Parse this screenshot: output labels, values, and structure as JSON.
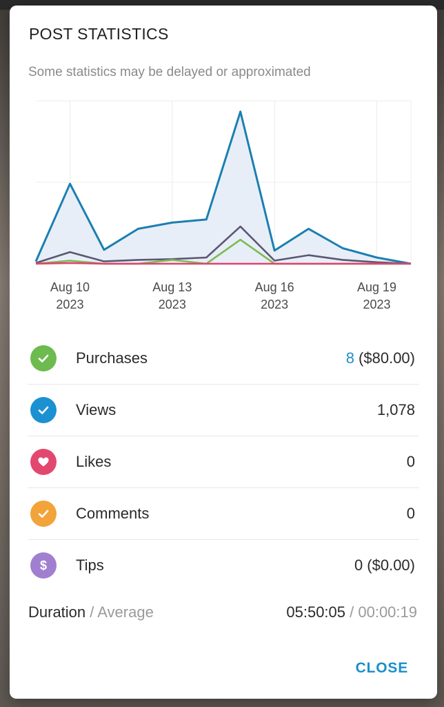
{
  "dialog": {
    "title": "POST STATISTICS",
    "subtitle": "Some statistics may be delayed or approximated",
    "close_label": "CLOSE"
  },
  "chart_data": {
    "type": "area",
    "x_tick_labels": [
      {
        "line1": "Aug 10",
        "line2": "2023"
      },
      {
        "line1": "Aug 13",
        "line2": "2023"
      },
      {
        "line1": "Aug 16",
        "line2": "2023"
      },
      {
        "line1": "Aug 19",
        "line2": "2023"
      }
    ],
    "x_tick_positions": [
      1,
      4,
      7,
      10
    ],
    "x": [
      0,
      1,
      2,
      3,
      4,
      5,
      6,
      7,
      8,
      9,
      10,
      11
    ],
    "ylim": [
      0,
      210
    ],
    "grid": true,
    "series": [
      {
        "id": "views",
        "color": "#1b7fb0",
        "fill": "#e8eef7",
        "values": [
          3,
          103,
          18,
          45,
          53,
          57,
          196,
          17,
          45,
          20,
          8,
          0
        ]
      },
      {
        "id": "purchases",
        "color": "#5c5672",
        "values": [
          1,
          15,
          3,
          5,
          6,
          8,
          48,
          4,
          11,
          5,
          2,
          0
        ]
      },
      {
        "id": "likes",
        "color": "#7cbc52",
        "values": [
          0,
          4,
          0,
          0,
          5,
          0,
          31,
          0,
          0,
          0,
          0,
          0
        ]
      },
      {
        "id": "tips",
        "color": "#e0436f",
        "values": [
          0,
          1,
          0,
          0,
          0,
          0,
          0,
          0,
          0,
          0,
          0,
          0
        ]
      }
    ]
  },
  "stats": [
    {
      "key": "purchases",
      "label": "Purchases",
      "icon": "check-icon",
      "icon_color": "#6dbb4f",
      "value_count": "8",
      "value_rest": " ($80.00)"
    },
    {
      "key": "views",
      "label": "Views",
      "icon": "check-icon",
      "icon_color": "#1b91d1",
      "value_count": "",
      "value_rest": "1,078"
    },
    {
      "key": "likes",
      "label": "Likes",
      "icon": "heart-icon",
      "icon_color": "#e2486f",
      "value_count": "",
      "value_rest": "0"
    },
    {
      "key": "comments",
      "label": "Comments",
      "icon": "check-icon",
      "icon_color": "#f2a33a",
      "value_count": "",
      "value_rest": "0"
    },
    {
      "key": "tips",
      "label": "Tips",
      "icon": "dollar-icon",
      "icon_color": "#a17fd0",
      "value_count": "",
      "value_rest": "0 ($0.00)"
    }
  ],
  "duration": {
    "label": "Duration",
    "label_sep": " / ",
    "label_avg": "Average",
    "value": "05:50:05",
    "value_sep": " / ",
    "value_avg": "00:00:19"
  }
}
